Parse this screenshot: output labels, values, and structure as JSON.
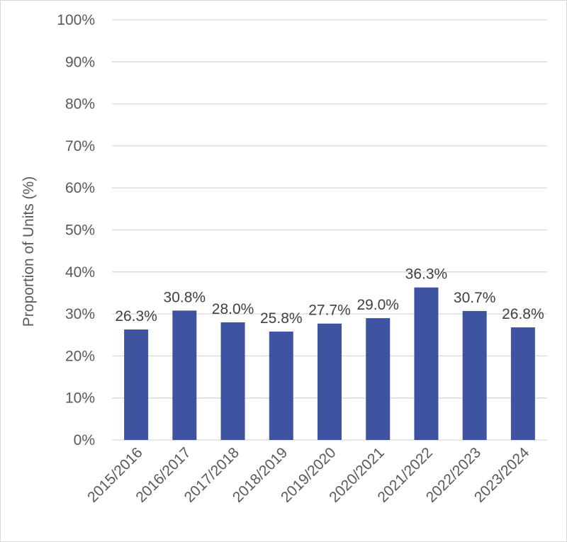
{
  "chart_data": {
    "type": "bar",
    "title": "",
    "xlabel": "",
    "ylabel": "Proportion of Units (%)",
    "categories": [
      "2015/2016",
      "2016/2017",
      "2017/2018",
      "2018/2019",
      "2019/2020",
      "2020/2021",
      "2021/2022",
      "2022/2023",
      "2023/2024"
    ],
    "values": [
      26.3,
      30.8,
      28.0,
      25.8,
      27.7,
      29.0,
      36.3,
      30.7,
      26.8
    ],
    "value_labels": [
      "26.3%",
      "30.8%",
      "28.0%",
      "25.8%",
      "27.7%",
      "29.0%",
      "36.3%",
      "30.7%",
      "26.8%"
    ],
    "ylim": [
      0,
      100
    ],
    "yticks": [
      0,
      10,
      20,
      30,
      40,
      50,
      60,
      70,
      80,
      90,
      100
    ],
    "ytick_labels": [
      "0%",
      "10%",
      "20%",
      "30%",
      "40%",
      "50%",
      "60%",
      "70%",
      "80%",
      "90%",
      "100%"
    ],
    "grid": true,
    "bar_color": "#3f54a1",
    "grid_color": "#d9d9d9"
  }
}
